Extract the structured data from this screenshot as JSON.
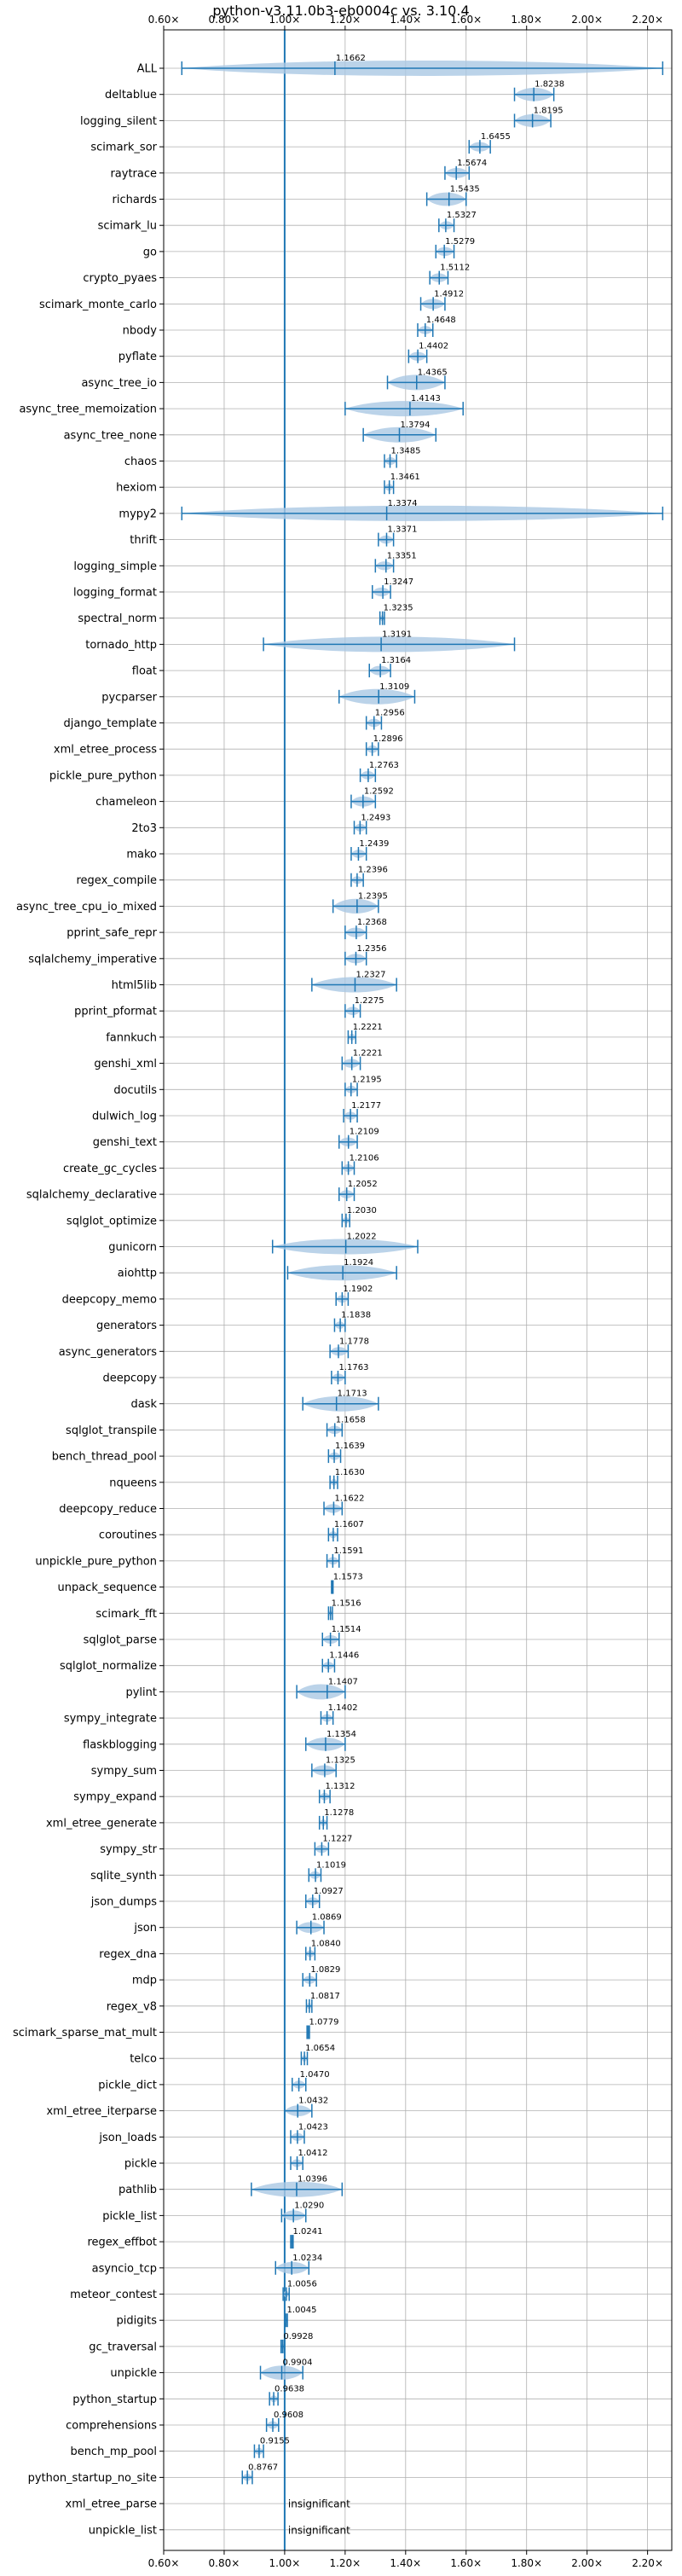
{
  "chart_data": {
    "type": "violin",
    "title": "python-v3.11.0b3-eb0004c vs. 3.10.4",
    "xlim": [
      0.6,
      2.28
    ],
    "xticks": [
      0.6,
      0.8,
      1.0,
      1.2,
      1.4,
      1.6,
      1.8,
      2.0,
      2.2
    ],
    "xtick_labels": [
      "0.60×",
      "0.80×",
      "1.00×",
      "1.20×",
      "1.40×",
      "1.60×",
      "1.80×",
      "2.00×",
      "2.20×"
    ],
    "reference_line": 1.0,
    "grid": true,
    "color": "#1f77b4",
    "violin_color": "#aac8e4",
    "insignificant_label": "insignificant",
    "benchmarks": [
      {
        "name": "ALL",
        "value": 1.1662,
        "label": "1.1662",
        "min": 0.66,
        "max": 2.25
      },
      {
        "name": "deltablue",
        "value": 1.8238,
        "label": "1.8238",
        "min": 1.76,
        "max": 1.89
      },
      {
        "name": "logging_silent",
        "value": 1.8195,
        "label": "1.8195",
        "min": 1.76,
        "max": 1.88
      },
      {
        "name": "scimark_sor",
        "value": 1.6455,
        "label": "1.6455",
        "min": 1.61,
        "max": 1.68
      },
      {
        "name": "raytrace",
        "value": 1.5674,
        "label": "1.5674",
        "min": 1.53,
        "max": 1.61
      },
      {
        "name": "richards",
        "value": 1.5435,
        "label": "1.5435",
        "min": 1.47,
        "max": 1.6
      },
      {
        "name": "scimark_lu",
        "value": 1.5327,
        "label": "1.5327",
        "min": 1.51,
        "max": 1.56
      },
      {
        "name": "go",
        "value": 1.5279,
        "label": "1.5279",
        "min": 1.5,
        "max": 1.56
      },
      {
        "name": "crypto_pyaes",
        "value": 1.5112,
        "label": "1.5112",
        "min": 1.48,
        "max": 1.54
      },
      {
        "name": "scimark_monte_carlo",
        "value": 1.4912,
        "label": "1.4912",
        "min": 1.45,
        "max": 1.53
      },
      {
        "name": "nbody",
        "value": 1.4648,
        "label": "1.4648",
        "min": 1.44,
        "max": 1.49
      },
      {
        "name": "pyflate",
        "value": 1.4402,
        "label": "1.4402",
        "min": 1.41,
        "max": 1.47
      },
      {
        "name": "async_tree_io",
        "value": 1.4365,
        "label": "1.4365",
        "min": 1.34,
        "max": 1.53
      },
      {
        "name": "async_tree_memoization",
        "value": 1.4143,
        "label": "1.4143",
        "min": 1.2,
        "max": 1.59
      },
      {
        "name": "async_tree_none",
        "value": 1.3794,
        "label": "1.3794",
        "min": 1.26,
        "max": 1.5
      },
      {
        "name": "chaos",
        "value": 1.3485,
        "label": "1.3485",
        "min": 1.33,
        "max": 1.37
      },
      {
        "name": "hexiom",
        "value": 1.3461,
        "label": "1.3461",
        "min": 1.33,
        "max": 1.36
      },
      {
        "name": "mypy2",
        "value": 1.3374,
        "label": "1.3374",
        "min": 0.66,
        "max": 2.25
      },
      {
        "name": "thrift",
        "value": 1.3371,
        "label": "1.3371",
        "min": 1.31,
        "max": 1.36
      },
      {
        "name": "logging_simple",
        "value": 1.3351,
        "label": "1.3351",
        "min": 1.3,
        "max": 1.36
      },
      {
        "name": "logging_format",
        "value": 1.3247,
        "label": "1.3247",
        "min": 1.29,
        "max": 1.35
      },
      {
        "name": "spectral_norm",
        "value": 1.3235,
        "label": "1.3235",
        "min": 1.315,
        "max": 1.33
      },
      {
        "name": "tornado_http",
        "value": 1.3191,
        "label": "1.3191",
        "min": 0.93,
        "max": 1.76
      },
      {
        "name": "float",
        "value": 1.3164,
        "label": "1.3164",
        "min": 1.28,
        "max": 1.35
      },
      {
        "name": "pycparser",
        "value": 1.3109,
        "label": "1.3109",
        "min": 1.18,
        "max": 1.43
      },
      {
        "name": "django_template",
        "value": 1.2956,
        "label": "1.2956",
        "min": 1.27,
        "max": 1.32
      },
      {
        "name": "xml_etree_process",
        "value": 1.2896,
        "label": "1.2896",
        "min": 1.27,
        "max": 1.31
      },
      {
        "name": "pickle_pure_python",
        "value": 1.2763,
        "label": "1.2763",
        "min": 1.25,
        "max": 1.3
      },
      {
        "name": "chameleon",
        "value": 1.2592,
        "label": "1.2592",
        "min": 1.22,
        "max": 1.3
      },
      {
        "name": "2to3",
        "value": 1.2493,
        "label": "1.2493",
        "min": 1.23,
        "max": 1.27
      },
      {
        "name": "mako",
        "value": 1.2439,
        "label": "1.2439",
        "min": 1.22,
        "max": 1.27
      },
      {
        "name": "regex_compile",
        "value": 1.2396,
        "label": "1.2396",
        "min": 1.22,
        "max": 1.26
      },
      {
        "name": "async_tree_cpu_io_mixed",
        "value": 1.2395,
        "label": "1.2395",
        "min": 1.16,
        "max": 1.31
      },
      {
        "name": "pprint_safe_repr",
        "value": 1.2368,
        "label": "1.2368",
        "min": 1.2,
        "max": 1.27
      },
      {
        "name": "sqlalchemy_imperative",
        "value": 1.2356,
        "label": "1.2356",
        "min": 1.2,
        "max": 1.27
      },
      {
        "name": "html5lib",
        "value": 1.2327,
        "label": "1.2327",
        "min": 1.09,
        "max": 1.37
      },
      {
        "name": "pprint_pformat",
        "value": 1.2275,
        "label": "1.2275",
        "min": 1.2,
        "max": 1.25
      },
      {
        "name": "fannkuch",
        "value": 1.2221,
        "label": "1.2221",
        "min": 1.21,
        "max": 1.235
      },
      {
        "name": "genshi_xml",
        "value": 1.2221,
        "label": "1.2221",
        "min": 1.19,
        "max": 1.25
      },
      {
        "name": "docutils",
        "value": 1.2195,
        "label": "1.2195",
        "min": 1.2,
        "max": 1.24
      },
      {
        "name": "dulwich_log",
        "value": 1.2177,
        "label": "1.2177",
        "min": 1.195,
        "max": 1.24
      },
      {
        "name": "genshi_text",
        "value": 1.2109,
        "label": "1.2109",
        "min": 1.18,
        "max": 1.24
      },
      {
        "name": "create_gc_cycles",
        "value": 1.2106,
        "label": "1.2106",
        "min": 1.19,
        "max": 1.23
      },
      {
        "name": "sqlalchemy_declarative",
        "value": 1.2052,
        "label": "1.2052",
        "min": 1.18,
        "max": 1.23
      },
      {
        "name": "sqlglot_optimize",
        "value": 1.203,
        "label": "1.2030",
        "min": 1.19,
        "max": 1.215
      },
      {
        "name": "gunicorn",
        "value": 1.2022,
        "label": "1.2022",
        "min": 0.96,
        "max": 1.44
      },
      {
        "name": "aiohttp",
        "value": 1.1924,
        "label": "1.1924",
        "min": 1.01,
        "max": 1.37
      },
      {
        "name": "deepcopy_memo",
        "value": 1.1902,
        "label": "1.1902",
        "min": 1.17,
        "max": 1.21
      },
      {
        "name": "generators",
        "value": 1.1838,
        "label": "1.1838",
        "min": 1.165,
        "max": 1.2
      },
      {
        "name": "async_generators",
        "value": 1.1778,
        "label": "1.1778",
        "min": 1.15,
        "max": 1.21
      },
      {
        "name": "deepcopy",
        "value": 1.1763,
        "label": "1.1763",
        "min": 1.155,
        "max": 1.2
      },
      {
        "name": "dask",
        "value": 1.1713,
        "label": "1.1713",
        "min": 1.06,
        "max": 1.31
      },
      {
        "name": "sqlglot_transpile",
        "value": 1.1658,
        "label": "1.1658",
        "min": 1.14,
        "max": 1.19
      },
      {
        "name": "bench_thread_pool",
        "value": 1.1639,
        "label": "1.1639",
        "min": 1.145,
        "max": 1.185
      },
      {
        "name": "nqueens",
        "value": 1.163,
        "label": "1.1630",
        "min": 1.15,
        "max": 1.175
      },
      {
        "name": "deepcopy_reduce",
        "value": 1.1622,
        "label": "1.1622",
        "min": 1.13,
        "max": 1.19
      },
      {
        "name": "coroutines",
        "value": 1.1607,
        "label": "1.1607",
        "min": 1.145,
        "max": 1.175
      },
      {
        "name": "unpickle_pure_python",
        "value": 1.1591,
        "label": "1.1591",
        "min": 1.14,
        "max": 1.18
      },
      {
        "name": "unpack_sequence",
        "value": 1.1573,
        "label": "1.1573",
        "min": 1.155,
        "max": 1.16
      },
      {
        "name": "scimark_fft",
        "value": 1.1516,
        "label": "1.1516",
        "min": 1.145,
        "max": 1.158
      },
      {
        "name": "sqlglot_parse",
        "value": 1.1514,
        "label": "1.1514",
        "min": 1.125,
        "max": 1.18
      },
      {
        "name": "sqlglot_normalize",
        "value": 1.1446,
        "label": "1.1446",
        "min": 1.125,
        "max": 1.165
      },
      {
        "name": "pylint",
        "value": 1.1407,
        "label": "1.1407",
        "min": 1.04,
        "max": 1.2
      },
      {
        "name": "sympy_integrate",
        "value": 1.1402,
        "label": "1.1402",
        "min": 1.12,
        "max": 1.16
      },
      {
        "name": "flaskblogging",
        "value": 1.1354,
        "label": "1.1354",
        "min": 1.07,
        "max": 1.2
      },
      {
        "name": "sympy_sum",
        "value": 1.1325,
        "label": "1.1325",
        "min": 1.09,
        "max": 1.17
      },
      {
        "name": "sympy_expand",
        "value": 1.1312,
        "label": "1.1312",
        "min": 1.115,
        "max": 1.15
      },
      {
        "name": "xml_etree_generate",
        "value": 1.1278,
        "label": "1.1278",
        "min": 1.115,
        "max": 1.14
      },
      {
        "name": "sympy_str",
        "value": 1.1227,
        "label": "1.1227",
        "min": 1.1,
        "max": 1.145
      },
      {
        "name": "sqlite_synth",
        "value": 1.1019,
        "label": "1.1019",
        "min": 1.08,
        "max": 1.12
      },
      {
        "name": "json_dumps",
        "value": 1.0927,
        "label": "1.0927",
        "min": 1.07,
        "max": 1.115
      },
      {
        "name": "json",
        "value": 1.0869,
        "label": "1.0869",
        "min": 1.04,
        "max": 1.13
      },
      {
        "name": "regex_dna",
        "value": 1.084,
        "label": "1.0840",
        "min": 1.07,
        "max": 1.1
      },
      {
        "name": "mdp",
        "value": 1.0829,
        "label": "1.0829",
        "min": 1.06,
        "max": 1.105
      },
      {
        "name": "regex_v8",
        "value": 1.0817,
        "label": "1.0817",
        "min": 1.072,
        "max": 1.09
      },
      {
        "name": "scimark_sparse_mat_mult",
        "value": 1.0779,
        "label": "1.0779",
        "min": 1.074,
        "max": 1.082
      },
      {
        "name": "telco",
        "value": 1.0654,
        "label": "1.0654",
        "min": 1.055,
        "max": 1.075
      },
      {
        "name": "pickle_dict",
        "value": 1.047,
        "label": "1.0470",
        "min": 1.025,
        "max": 1.07
      },
      {
        "name": "xml_etree_iterparse",
        "value": 1.0432,
        "label": "1.0432",
        "min": 1.0,
        "max": 1.09
      },
      {
        "name": "json_loads",
        "value": 1.0423,
        "label": "1.0423",
        "min": 1.02,
        "max": 1.065
      },
      {
        "name": "pickle",
        "value": 1.0412,
        "label": "1.0412",
        "min": 1.02,
        "max": 1.06
      },
      {
        "name": "pathlib",
        "value": 1.0396,
        "label": "1.0396",
        "min": 0.89,
        "max": 1.19
      },
      {
        "name": "pickle_list",
        "value": 1.029,
        "label": "1.0290",
        "min": 0.99,
        "max": 1.07
      },
      {
        "name": "regex_effbot",
        "value": 1.0241,
        "label": "1.0241",
        "min": 1.02,
        "max": 1.028
      },
      {
        "name": "asyncio_tcp",
        "value": 1.0234,
        "label": "1.0234",
        "min": 0.97,
        "max": 1.08
      },
      {
        "name": "meteor_contest",
        "value": 1.0056,
        "label": "1.0056",
        "min": 0.995,
        "max": 1.015
      },
      {
        "name": "pidigits",
        "value": 1.0045,
        "label": "1.0045",
        "min": 1.0,
        "max": 1.009
      },
      {
        "name": "gc_traversal",
        "value": 0.9928,
        "label": "0.9928",
        "min": 0.988,
        "max": 0.998
      },
      {
        "name": "unpickle",
        "value": 0.9904,
        "label": "0.9904",
        "min": 0.92,
        "max": 1.06
      },
      {
        "name": "python_startup",
        "value": 0.9638,
        "label": "0.9638",
        "min": 0.95,
        "max": 0.978
      },
      {
        "name": "comprehensions",
        "value": 0.9608,
        "label": "0.9608",
        "min": 0.94,
        "max": 0.98
      },
      {
        "name": "bench_mp_pool",
        "value": 0.9155,
        "label": "0.9155",
        "min": 0.9,
        "max": 0.93
      },
      {
        "name": "python_startup_no_site",
        "value": 0.8767,
        "label": "0.8767",
        "min": 0.86,
        "max": 0.893
      },
      {
        "name": "xml_etree_parse",
        "value": null,
        "label": null,
        "min": null,
        "max": null,
        "insignificant": true
      },
      {
        "name": "unpickle_list",
        "value": null,
        "label": null,
        "min": null,
        "max": null,
        "insignificant": true
      }
    ]
  }
}
